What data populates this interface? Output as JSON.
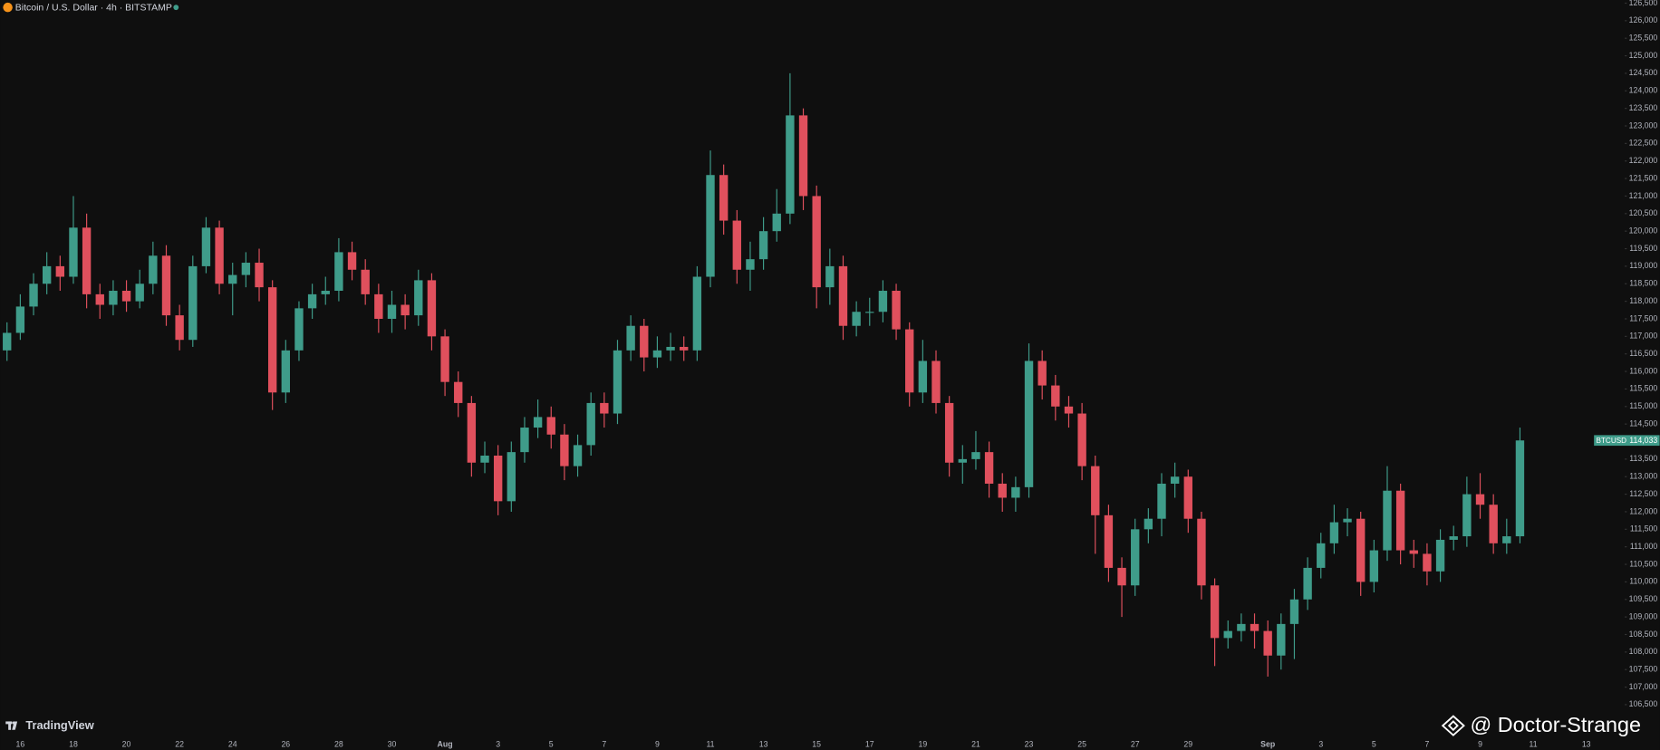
{
  "header": {
    "title": "Bitcoin / U.S. Dollar · 4h · BITSTAMP"
  },
  "watermark": "TradingView",
  "author": "@ Doctor-Strange",
  "chart_data": {
    "type": "candlestick",
    "symbol": "BTCUSD",
    "last_price": 114033,
    "last_price_label": "114,033",
    "up_color": "#3f9c8a",
    "down_color": "#e0505d",
    "categories": [
      null,
      "16",
      null,
      null,
      null,
      "18",
      null,
      null,
      null,
      "20",
      null,
      null,
      null,
      "22",
      null,
      null,
      null,
      "24",
      null,
      null,
      null,
      "26",
      null,
      null,
      null,
      "28",
      null,
      null,
      null,
      "30",
      null,
      null,
      null,
      "Aug",
      null,
      null,
      null,
      "3",
      null,
      null,
      null,
      "5",
      null,
      null,
      null,
      "7",
      null,
      null,
      null,
      "9",
      null,
      null,
      null,
      "11",
      null,
      null,
      null,
      "13",
      null,
      null,
      null,
      "15",
      null,
      null,
      null,
      "17",
      null,
      null,
      null,
      "19",
      null,
      null,
      null,
      "21",
      null,
      null,
      null,
      "23",
      null,
      null,
      null,
      "25",
      null,
      null,
      null,
      "27",
      null,
      null,
      null,
      "29",
      null,
      null,
      null,
      null,
      null,
      "Sep",
      null,
      null,
      null,
      "3",
      null,
      null,
      null,
      "5",
      null,
      null,
      null,
      "7",
      null,
      null,
      null,
      "9",
      null,
      null,
      null,
      "11",
      null,
      null,
      null,
      "13"
    ],
    "open": [
      116600,
      117100,
      117850,
      118500,
      119000,
      118700,
      120100,
      118200,
      117900,
      118300,
      118000,
      118500,
      119300,
      117600,
      116900,
      119000,
      120100,
      118500,
      118750,
      119100,
      118400,
      115400,
      116600,
      117800,
      118200,
      118300,
      119400,
      118900,
      118200,
      117500,
      117900,
      117600,
      118600,
      117000,
      115700,
      115100,
      113400,
      113600,
      112300,
      113700,
      114400,
      114700,
      114200,
      113300,
      113900,
      115100,
      114800,
      116600,
      117300,
      116400,
      116600,
      116700,
      116600,
      118700,
      121600,
      120300,
      118900,
      119200,
      120000,
      120500,
      123300,
      121000,
      118400,
      119000,
      117300,
      117700,
      117700,
      118300,
      117200,
      115400,
      116300,
      115100,
      113400,
      113500,
      113700,
      112800,
      112400,
      112700,
      116300,
      115600,
      115000,
      114800,
      113300,
      111900,
      110400,
      109900,
      111500,
      111800,
      112800,
      113000,
      111800,
      109900,
      108400,
      108600,
      108800,
      108600,
      107900,
      108800,
      109500,
      110400,
      111100,
      111700,
      111800,
      110000,
      110900,
      112600,
      110900,
      110800,
      110300,
      111200,
      111300,
      112500,
      112200,
      111100,
      111300,
      null,
      null,
      null,
      null,
      null
    ],
    "high": [
      117400,
      118200,
      118800,
      119400,
      119300,
      121000,
      120500,
      118500,
      118600,
      118600,
      118900,
      119700,
      119600,
      117900,
      119300,
      120400,
      120300,
      119100,
      119400,
      119500,
      118600,
      116900,
      118000,
      118500,
      118700,
      119800,
      119700,
      119200,
      118500,
      118300,
      118200,
      118900,
      118800,
      117200,
      116000,
      115300,
      114000,
      113900,
      114000,
      114700,
      115200,
      115000,
      114500,
      114200,
      115400,
      115400,
      116900,
      117600,
      117500,
      117000,
      117100,
      117000,
      119000,
      122300,
      121900,
      120600,
      119700,
      120400,
      121200,
      124500,
      123500,
      121300,
      119500,
      119300,
      118000,
      118100,
      118600,
      118500,
      117400,
      116900,
      116600,
      115300,
      113900,
      114300,
      114000,
      113100,
      113000,
      116800,
      116600,
      115900,
      115300,
      115100,
      113600,
      112200,
      110700,
      111800,
      112100,
      113100,
      113400,
      113200,
      112000,
      110100,
      108900,
      109100,
      109100,
      108900,
      109100,
      109800,
      110700,
      111400,
      112200,
      112100,
      112000,
      111200,
      113300,
      112800,
      111200,
      111100,
      111500,
      111600,
      113000,
      113100,
      112500,
      111800,
      114400,
      null,
      null,
      null,
      null,
      null
    ],
    "low": [
      116300,
      116900,
      117600,
      118200,
      118300,
      118500,
      117800,
      117500,
      117600,
      117700,
      117800,
      118200,
      117300,
      116600,
      116700,
      118800,
      118200,
      117600,
      118400,
      118000,
      114900,
      115100,
      116300,
      117500,
      117900,
      118000,
      118600,
      117900,
      117100,
      117100,
      117200,
      117300,
      116600,
      115300,
      114700,
      113000,
      113100,
      111900,
      112000,
      113400,
      114100,
      113800,
      112900,
      113000,
      113600,
      114400,
      114500,
      116300,
      116000,
      116100,
      116300,
      116300,
      116300,
      118400,
      119900,
      118500,
      118300,
      118900,
      119700,
      120200,
      120600,
      117800,
      117900,
      116900,
      117000,
      117300,
      117400,
      116900,
      115000,
      115100,
      114800,
      113000,
      112800,
      113200,
      112400,
      112000,
      112000,
      112400,
      115200,
      114600,
      114400,
      112900,
      110800,
      110000,
      109000,
      109600,
      111100,
      111300,
      112400,
      111400,
      109500,
      107600,
      108100,
      108300,
      108100,
      107300,
      107500,
      107800,
      109200,
      110100,
      110800,
      111300,
      109600,
      109700,
      110600,
      110500,
      110400,
      109900,
      110000,
      110900,
      111000,
      111800,
      110800,
      110800,
      111100,
      null,
      null,
      null,
      null,
      null
    ],
    "close": [
      117100,
      117850,
      118500,
      119000,
      118700,
      120100,
      118200,
      117900,
      118300,
      118000,
      118500,
      119300,
      117600,
      116900,
      119000,
      120100,
      118500,
      118750,
      119100,
      118400,
      115400,
      116600,
      117800,
      118200,
      118300,
      119400,
      118900,
      118200,
      117500,
      117900,
      117600,
      118600,
      117000,
      115700,
      115100,
      113400,
      113600,
      112300,
      113700,
      114400,
      114700,
      114200,
      113300,
      113900,
      115100,
      114800,
      116600,
      117300,
      116400,
      116600,
      116700,
      116600,
      118700,
      121600,
      120300,
      118900,
      119200,
      120000,
      120500,
      123300,
      121000,
      118400,
      119000,
      117300,
      117700,
      117700,
      118300,
      117200,
      115400,
      116300,
      115100,
      113400,
      113500,
      113700,
      112800,
      112400,
      112700,
      116300,
      115600,
      115000,
      114800,
      113300,
      111900,
      110400,
      109900,
      111500,
      111800,
      112800,
      113000,
      111800,
      109900,
      108400,
      108600,
      108800,
      108600,
      107900,
      108800,
      109500,
      110400,
      111100,
      111700,
      111800,
      110000,
      110900,
      112600,
      110900,
      110800,
      110300,
      111200,
      111300,
      112500,
      112200,
      111100,
      111300,
      114033,
      null,
      null,
      null,
      null,
      null
    ],
    "ylim": [
      105780,
      126590
    ],
    "yticks": [
      {
        "value": 106500,
        "label": "106,500"
      },
      {
        "value": 107000,
        "label": "107,000"
      },
      {
        "value": 107500,
        "label": "107,500"
      },
      {
        "value": 108000,
        "label": "108,000"
      },
      {
        "value": 108500,
        "label": "108,500"
      },
      {
        "value": 109000,
        "label": "109,000"
      },
      {
        "value": 109500,
        "label": "109,500"
      },
      {
        "value": 110000,
        "label": "110,000"
      },
      {
        "value": 110500,
        "label": "110,500"
      },
      {
        "value": 111000,
        "label": "111,000"
      },
      {
        "value": 111500,
        "label": "111,500"
      },
      {
        "value": 112000,
        "label": "112,000"
      },
      {
        "value": 112500,
        "label": "112,500"
      },
      {
        "value": 113000,
        "label": "113,000"
      },
      {
        "value": 113500,
        "label": "113,500"
      },
      {
        "value": 114000,
        "label": "114,000"
      },
      {
        "value": 114500,
        "label": "114,500"
      },
      {
        "value": 115000,
        "label": "115,000"
      },
      {
        "value": 115500,
        "label": "115,500"
      },
      {
        "value": 116000,
        "label": "116,000"
      },
      {
        "value": 116500,
        "label": "116,500"
      },
      {
        "value": 117000,
        "label": "117,000"
      },
      {
        "value": 117500,
        "label": "117,500"
      },
      {
        "value": 118000,
        "label": "118,000"
      },
      {
        "value": 118500,
        "label": "118,500"
      },
      {
        "value": 119000,
        "label": "119,000"
      },
      {
        "value": 119500,
        "label": "119,500"
      },
      {
        "value": 120000,
        "label": "120,000"
      },
      {
        "value": 120500,
        "label": "120,500"
      },
      {
        "value": 121000,
        "label": "121,000"
      },
      {
        "value": 121500,
        "label": "121,500"
      },
      {
        "value": 122000,
        "label": "122,000"
      },
      {
        "value": 122500,
        "label": "122,500"
      },
      {
        "value": 123000,
        "label": "123,000"
      },
      {
        "value": 123500,
        "label": "123,500"
      },
      {
        "value": 124000,
        "label": "124,000"
      },
      {
        "value": 124500,
        "label": "124,500"
      },
      {
        "value": 125000,
        "label": "125,000"
      },
      {
        "value": 125500,
        "label": "125,500"
      },
      {
        "value": 126000,
        "label": "126,000"
      },
      {
        "value": 126500,
        "label": "126,500"
      }
    ]
  }
}
